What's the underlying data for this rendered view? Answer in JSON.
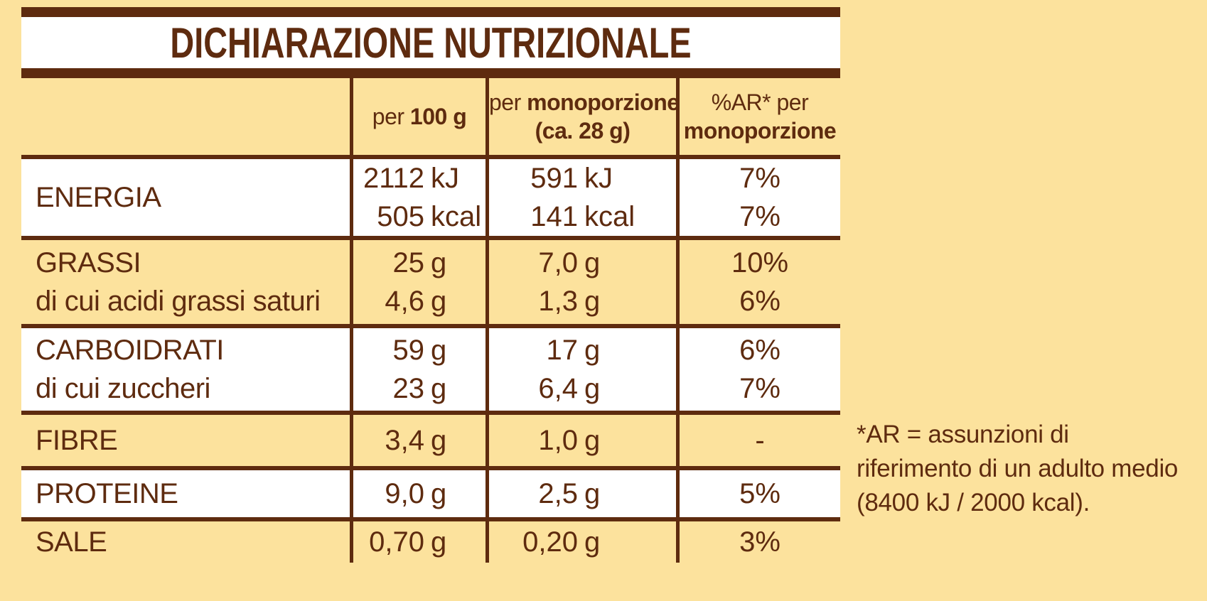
{
  "colors": {
    "background": "#FCE29D",
    "ink_brown": "#5E2B0F",
    "title_band": "#FFFFFF"
  },
  "table": {
    "title": "DICHIARAZIONE NUTRIZIONALE",
    "header": {
      "per100": {
        "prefix": "per ",
        "bold": "100 g"
      },
      "portion": {
        "prefix": "per ",
        "bold": "monoporzione",
        "line2": "(ca. 28 g)"
      },
      "ar": {
        "line1": "%AR* per",
        "line2": "monoporzione"
      }
    },
    "rows": [
      {
        "name": "energia",
        "bg": "white",
        "labels": [
          "ENERGIA"
        ],
        "per100": [
          [
            "2112",
            "kJ"
          ],
          [
            "505",
            "kcal"
          ]
        ],
        "portion": [
          [
            "591",
            "kJ"
          ],
          [
            "141",
            "kcal"
          ]
        ],
        "ar": [
          "7%",
          "7%"
        ]
      },
      {
        "name": "grassi",
        "bg": "yellow",
        "labels": [
          "GRASSI",
          "di cui acidi grassi saturi"
        ],
        "per100": [
          [
            "25",
            "g"
          ],
          [
            "4,6",
            "g"
          ]
        ],
        "portion": [
          [
            "7,0",
            "g"
          ],
          [
            "1,3",
            "g"
          ]
        ],
        "ar": [
          "10%",
          "6%"
        ]
      },
      {
        "name": "carboidrati",
        "bg": "white",
        "labels": [
          "CARBOIDRATI",
          "di cui zuccheri"
        ],
        "per100": [
          [
            "59",
            "g"
          ],
          [
            "23",
            "g"
          ]
        ],
        "portion": [
          [
            "17",
            "g"
          ],
          [
            "6,4",
            "g"
          ]
        ],
        "ar": [
          "6%",
          "7%"
        ]
      },
      {
        "name": "fibre",
        "bg": "yellow",
        "labels": [
          "FIBRE"
        ],
        "per100": [
          [
            "3,4",
            "g"
          ]
        ],
        "portion": [
          [
            "1,0",
            "g"
          ]
        ],
        "ar": [
          "-"
        ]
      },
      {
        "name": "proteine",
        "bg": "white",
        "labels": [
          "PROTEINE"
        ],
        "per100": [
          [
            "9,0",
            "g"
          ]
        ],
        "portion": [
          [
            "2,5",
            "g"
          ]
        ],
        "ar": [
          "5%"
        ]
      },
      {
        "name": "sale",
        "bg": "yellow",
        "labels": [
          "SALE"
        ],
        "per100": [
          [
            "0,70",
            "g"
          ]
        ],
        "portion": [
          [
            "0,20",
            "g"
          ]
        ],
        "ar": [
          "3%"
        ]
      }
    ]
  },
  "footnote": {
    "lines": [
      "*AR = assunzioni di",
      "riferimento di un adulto medio",
      "(8400 kJ / 2000 kcal)."
    ]
  }
}
